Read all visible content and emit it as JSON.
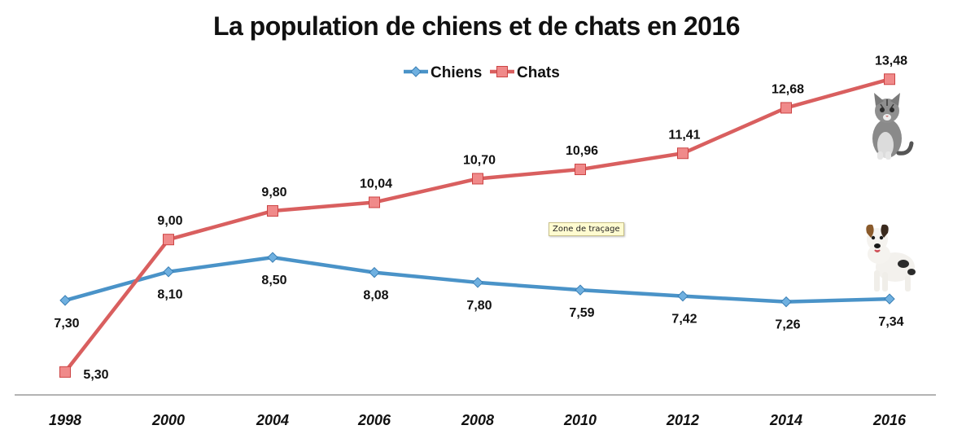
{
  "chart_data": {
    "type": "line",
    "title": "La population de chiens et de chats en 2016",
    "categories": [
      "1998",
      "2000",
      "2004",
      "2006",
      "2008",
      "2010",
      "2012",
      "2014",
      "2016"
    ],
    "series": [
      {
        "name": "Chiens",
        "color": "#4a93c8",
        "marker": "diamond",
        "values": [
          7.3,
          8.1,
          8.5,
          8.08,
          7.8,
          7.59,
          7.42,
          7.26,
          7.34
        ],
        "labels": [
          "7,30",
          "8,10",
          "8,50",
          "8,08",
          "7,80",
          "7,59",
          "7,42",
          "7,26",
          "7,34"
        ]
      },
      {
        "name": "Chats",
        "color": "#d95f5f",
        "marker": "square",
        "values": [
          5.3,
          9.0,
          9.8,
          10.04,
          10.7,
          10.96,
          11.41,
          12.68,
          13.48
        ],
        "labels": [
          "5,30",
          "9,00",
          "9,80",
          "10,04",
          "10,70",
          "10,96",
          "11,41",
          "12,68",
          "13,48"
        ]
      }
    ],
    "legend": "top-center",
    "grid": false,
    "ylim": [
      5,
      13.6
    ]
  },
  "tooltip": "Zone de traçage",
  "icons": [
    "cat-icon",
    "dog-icon"
  ]
}
